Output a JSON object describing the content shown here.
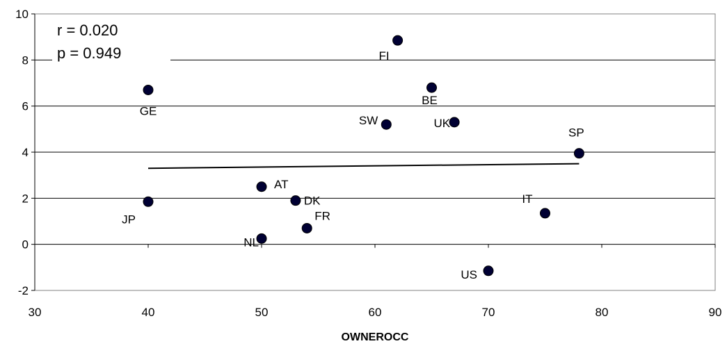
{
  "chart_data": {
    "type": "scatter",
    "title": "",
    "xlabel": "OWNEROCC",
    "ylabel": "",
    "xlim": [
      30,
      90
    ],
    "ylim": [
      -2,
      10
    ],
    "xticks": [
      30,
      40,
      50,
      60,
      70,
      80,
      90
    ],
    "yticks": [
      -2,
      0,
      2,
      4,
      6,
      8,
      10
    ],
    "grid": "horizontal",
    "points": [
      {
        "label": "FI",
        "x": 62,
        "y": 8.85
      },
      {
        "label": "GE",
        "x": 40,
        "y": 6.7
      },
      {
        "label": "BE",
        "x": 65,
        "y": 6.8
      },
      {
        "label": "SW",
        "x": 61,
        "y": 5.2
      },
      {
        "label": "UK",
        "x": 67,
        "y": 5.3
      },
      {
        "label": "SP",
        "x": 78,
        "y": 3.95
      },
      {
        "label": "AT",
        "x": 50,
        "y": 2.5
      },
      {
        "label": "DK",
        "x": 53,
        "y": 1.9
      },
      {
        "label": "JP",
        "x": 40,
        "y": 1.85
      },
      {
        "label": "IT",
        "x": 75,
        "y": 1.35
      },
      {
        "label": "FR",
        "x": 54,
        "y": 0.7
      },
      {
        "label": "NL",
        "x": 50,
        "y": 0.25
      },
      {
        "label": "US",
        "x": 70,
        "y": -1.15
      }
    ],
    "trendline": {
      "x": [
        40,
        78
      ],
      "y": [
        3.3,
        3.5
      ]
    },
    "annotations": [
      "r = 0.020",
      "p = 0.949"
    ]
  }
}
